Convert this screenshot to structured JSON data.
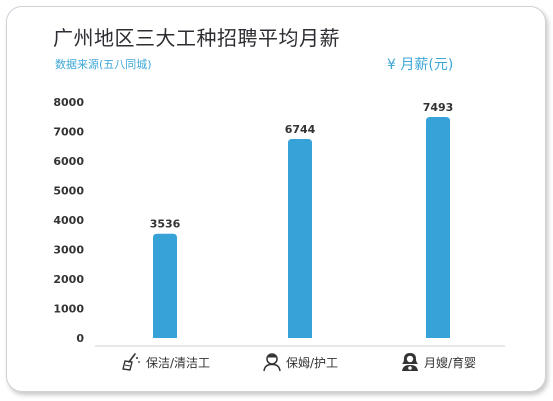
{
  "title": "广州地区三大工种招聘平均月薪",
  "subtitle": "数据来源(五八同城)",
  "unit_label": "¥ 月薪(元)",
  "colors": {
    "bar": "#37a2d8",
    "accent": "#3ea7d8"
  },
  "categories": [
    {
      "label": "保洁/清洁工",
      "icon": "cleaning-broom-icon"
    },
    {
      "label": "保姆/护工",
      "icon": "nanny-person-icon"
    },
    {
      "label": "月嫂/育婴",
      "icon": "mother-baby-icon"
    }
  ],
  "chart_data": {
    "type": "bar",
    "title": "广州地区三大工种招聘平均月薪",
    "subtitle": "数据来源(五八同城)",
    "ylabel": "¥ 月薪(元)",
    "categories": [
      "保洁/清洁工",
      "保姆/护工",
      "月嫂/育婴"
    ],
    "values": [
      3536,
      6744,
      7493
    ],
    "value_labels": [
      "3536",
      "6744",
      "7493"
    ],
    "ylim": [
      0,
      8000
    ],
    "yticks": [
      "0",
      "1000",
      "2000",
      "3000",
      "4000",
      "5000",
      "6000",
      "7000",
      "8000"
    ],
    "grid": false,
    "legend": "none"
  }
}
